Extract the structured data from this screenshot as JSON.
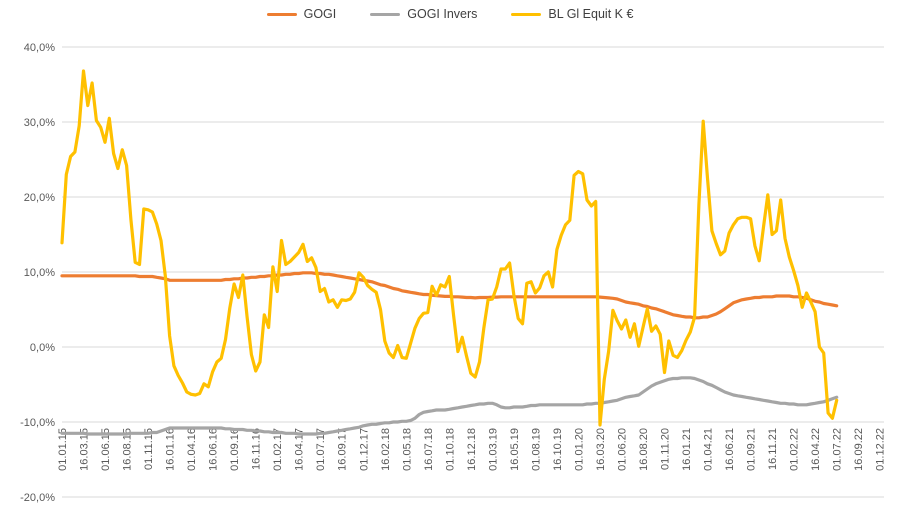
{
  "legend": {
    "items": [
      {
        "label": "GOGI",
        "color": "#ED7D31"
      },
      {
        "label": "GOGI Invers",
        "color": "#A5A5A5"
      },
      {
        "label": "BL Gl Equit K €",
        "color": "#FFC000"
      }
    ]
  },
  "colors": {
    "background": "#FFFFFF",
    "gridline": "#D9D9D9",
    "axis_text": "#595959",
    "legend_text": "#404040",
    "series_orange": "#ED7D31",
    "series_gray": "#A5A5A5",
    "series_yellow": "#FFC000"
  },
  "chart_data": {
    "type": "line",
    "title": "",
    "xlabel": "",
    "ylabel": "",
    "grid": "horizontal",
    "legend_position": "top",
    "y_axis": {
      "min": -20,
      "max": 40,
      "unit": "%",
      "decimal_separator": ",",
      "tick_values": [
        40,
        30,
        20,
        10,
        0,
        -10,
        -20
      ],
      "tick_labels": [
        "40,0%",
        "30,0%",
        "20,0%",
        "10,0%",
        "0,0%",
        "-10,0%",
        "-20,0%"
      ]
    },
    "x_axis": {
      "num_points": 192,
      "label_rotation_deg": 90,
      "tick_indices": [
        0,
        5,
        10,
        15,
        20,
        25,
        30,
        35,
        40,
        45,
        50,
        55,
        60,
        65,
        70,
        75,
        80,
        85,
        90,
        95,
        100,
        105,
        110,
        115,
        120,
        125,
        130,
        135,
        140,
        145,
        150,
        155,
        160,
        165,
        170,
        175,
        180,
        185,
        190
      ],
      "tick_labels": [
        "01.01.15",
        "16.03.15",
        "01.06.15",
        "16.08.15",
        "01.11.15",
        "16.01.16",
        "01.04.16",
        "16.06.16",
        "01.09.16",
        "16.11.16",
        "01.02.17",
        "16.04.17",
        "01.07.17",
        "16.09.17",
        "01.12.17",
        "16.02.18",
        "01.05.18",
        "16.07.18",
        "01.10.18",
        "16.12.18",
        "01.03.19",
        "16.05.19",
        "01.08.19",
        "16.10.19",
        "01.01.20",
        "16.03.20",
        "01.06.20",
        "16.08.20",
        "01.11.20",
        "16.01.21",
        "01.04.21",
        "16.06.21",
        "01.09.21",
        "16.11.21",
        "01.02.22",
        "16.04.22",
        "01.07.22",
        "16.09.22",
        "01.12.22"
      ]
    },
    "series": [
      {
        "name": "GOGI",
        "color": "#ED7D31",
        "values": [
          9.5,
          9.5,
          9.5,
          9.5,
          9.5,
          9.5,
          9.5,
          9.5,
          9.5,
          9.5,
          9.5,
          9.5,
          9.5,
          9.5,
          9.5,
          9.5,
          9.5,
          9.5,
          9.4,
          9.4,
          9.4,
          9.4,
          9.3,
          9.2,
          9.1,
          8.9,
          8.9,
          8.9,
          8.9,
          8.9,
          8.9,
          8.9,
          8.9,
          8.9,
          8.9,
          8.9,
          8.9,
          8.9,
          9,
          9,
          9.1,
          9.1,
          9.2,
          9.2,
          9.3,
          9.3,
          9.4,
          9.4,
          9.5,
          9.5,
          9.6,
          9.6,
          9.7,
          9.7,
          9.8,
          9.8,
          9.9,
          9.9,
          9.9,
          9.8,
          9.8,
          9.7,
          9.7,
          9.6,
          9.5,
          9.4,
          9.3,
          9.2,
          9.1,
          9,
          8.9,
          8.8,
          8.7,
          8.5,
          8.3,
          8.2,
          8,
          7.8,
          7.7,
          7.5,
          7.4,
          7.3,
          7.2,
          7.1,
          7,
          7,
          6.9,
          6.85,
          6.8,
          6.75,
          6.75,
          6.7,
          6.7,
          6.65,
          6.6,
          6.6,
          6.55,
          6.6,
          6.6,
          6.6,
          6.65,
          6.65,
          6.7,
          6.7,
          6.7,
          6.7,
          6.7,
          6.7,
          6.7,
          6.7,
          6.7,
          6.7,
          6.7,
          6.7,
          6.7,
          6.7,
          6.7,
          6.7,
          6.7,
          6.7,
          6.7,
          6.7,
          6.7,
          6.7,
          6.7,
          6.65,
          6.6,
          6.55,
          6.5,
          6.4,
          6.2,
          6,
          5.9,
          5.8,
          5.7,
          5.5,
          5.4,
          5.2,
          5.1,
          4.9,
          4.7,
          4.5,
          4.3,
          4.2,
          4.1,
          4,
          4,
          3.9,
          3.9,
          4,
          4,
          4.2,
          4.4,
          4.7,
          5.1,
          5.5,
          5.9,
          6.1,
          6.3,
          6.4,
          6.5,
          6.6,
          6.6,
          6.7,
          6.7,
          6.7,
          6.8,
          6.8,
          6.8,
          6.8,
          6.7,
          6.7,
          6.6,
          6.5,
          6.3,
          6.1,
          6,
          5.8,
          5.7,
          5.6,
          5.5
        ]
      },
      {
        "name": "GOGI Invers",
        "color": "#A5A5A5",
        "values": [
          -11.5,
          -11.5,
          -11.5,
          -11.5,
          -11.5,
          -11.5,
          -11.6,
          -11.6,
          -11.6,
          -11.6,
          -11.6,
          -11.6,
          -11.6,
          -11.6,
          -11.6,
          -11.6,
          -11.5,
          -11.5,
          -11.5,
          -11.5,
          -11.5,
          -11.4,
          -11.4,
          -11.2,
          -11,
          -10.8,
          -10.8,
          -10.8,
          -10.8,
          -10.8,
          -10.8,
          -10.8,
          -10.8,
          -10.8,
          -10.8,
          -10.8,
          -10.8,
          -10.8,
          -10.9,
          -10.9,
          -11,
          -11,
          -11,
          -11.1,
          -11.1,
          -11.2,
          -11.2,
          -11.3,
          -11.3,
          -11.4,
          -11.4,
          -11.4,
          -11.5,
          -11.5,
          -11.5,
          -11.6,
          -11.6,
          -11.6,
          -11.6,
          -11.6,
          -11.5,
          -11.5,
          -11.4,
          -11.3,
          -11.2,
          -11.1,
          -11,
          -10.9,
          -10.8,
          -10.7,
          -10.5,
          -10.4,
          -10.3,
          -10.3,
          -10.2,
          -10.1,
          -10.1,
          -10,
          -10,
          -9.9,
          -9.9,
          -9.8,
          -9.5,
          -9,
          -8.7,
          -8.6,
          -8.5,
          -8.4,
          -8.4,
          -8.4,
          -8.3,
          -8.2,
          -8.1,
          -8,
          -7.9,
          -7.8,
          -7.7,
          -7.6,
          -7.6,
          -7.5,
          -7.5,
          -7.7,
          -8,
          -8.1,
          -8.1,
          -8,
          -8,
          -8,
          -7.9,
          -7.8,
          -7.8,
          -7.7,
          -7.7,
          -7.7,
          -7.7,
          -7.7,
          -7.7,
          -7.7,
          -7.7,
          -7.7,
          -7.7,
          -7.7,
          -7.6,
          -7.6,
          -7.5,
          -7.5,
          -7.4,
          -7.3,
          -7.2,
          -7.1,
          -6.9,
          -6.7,
          -6.6,
          -6.5,
          -6.4,
          -6,
          -5.6,
          -5.2,
          -4.9,
          -4.7,
          -4.5,
          -4.3,
          -4.2,
          -4.2,
          -4.1,
          -4.1,
          -4.1,
          -4.2,
          -4.4,
          -4.6,
          -4.9,
          -5.1,
          -5.4,
          -5.7,
          -6,
          -6.2,
          -6.4,
          -6.5,
          -6.6,
          -6.7,
          -6.8,
          -6.9,
          -7,
          -7.1,
          -7.2,
          -7.3,
          -7.4,
          -7.5,
          -7.5,
          -7.6,
          -7.6,
          -7.7,
          -7.7,
          -7.7,
          -7.6,
          -7.5,
          -7.4,
          -7.3,
          -7.1,
          -6.9,
          -6.7
        ]
      },
      {
        "name": "BL Gl Equit K €",
        "color": "#FFC000",
        "values": [
          13.9,
          23,
          25.4,
          26,
          29.5,
          36.8,
          32.2,
          35.2,
          30.2,
          29.3,
          27.3,
          30.5,
          25.8,
          23.8,
          26.3,
          24.2,
          17,
          11.3,
          11,
          18.4,
          18.3,
          18,
          16.4,
          14.2,
          9.5,
          1.5,
          -2.5,
          -3.8,
          -4.8,
          -6,
          -6.3,
          -6.4,
          -6.2,
          -4.9,
          -5.3,
          -3.3,
          -2,
          -1.5,
          1,
          5.2,
          8.4,
          6.6,
          9.6,
          4,
          -1,
          -3.2,
          -2,
          4.3,
          2.6,
          10.7,
          7.4,
          14.2,
          11,
          11.4,
          12,
          12.6,
          13.7,
          11.4,
          11.9,
          10.6,
          7.4,
          7.8,
          6,
          6.3,
          5.3,
          6.3,
          6.2,
          6.4,
          7.3,
          9.9,
          9.3,
          8.2,
          7.7,
          7.3,
          5,
          0.8,
          -0.8,
          -1.4,
          0.2,
          -1.4,
          -1.5,
          0.5,
          2.5,
          3.8,
          4.5,
          4.6,
          8.1,
          6.9,
          8.3,
          8,
          9.4,
          4.2,
          -0.6,
          1.3,
          -1.2,
          -3.5,
          -4,
          -2,
          2.5,
          6.3,
          6.4,
          8,
          10.4,
          10.4,
          11.2,
          6.9,
          3.8,
          3.1,
          8.5,
          8.7,
          7.2,
          7.9,
          9.5,
          10,
          8,
          13,
          14.9,
          16.3,
          16.9,
          22.9,
          23.4,
          23.1,
          19.6,
          18.8,
          19.4,
          -10.4,
          -4.3,
          -0.6,
          4.9,
          3.5,
          2.4,
          3.6,
          1.3,
          3.1,
          0.1,
          2.6,
          5.1,
          2.1,
          2.8,
          1.7,
          -3.4,
          0.8,
          -1.1,
          -1.4,
          -0.5,
          0.9,
          2,
          4,
          19,
          30.1,
          22.5,
          15.5,
          13.8,
          12.3,
          12.8,
          15.2,
          16.3,
          17.1,
          17.3,
          17.3,
          17.1,
          13.5,
          11.5,
          16,
          20.3,
          15,
          15.5,
          19.6,
          14.5,
          12,
          10.2,
          8.2,
          5.3,
          7.2,
          6,
          4.7,
          0,
          -0.8,
          -8.8,
          -9.5,
          -7.1
        ]
      }
    ]
  }
}
